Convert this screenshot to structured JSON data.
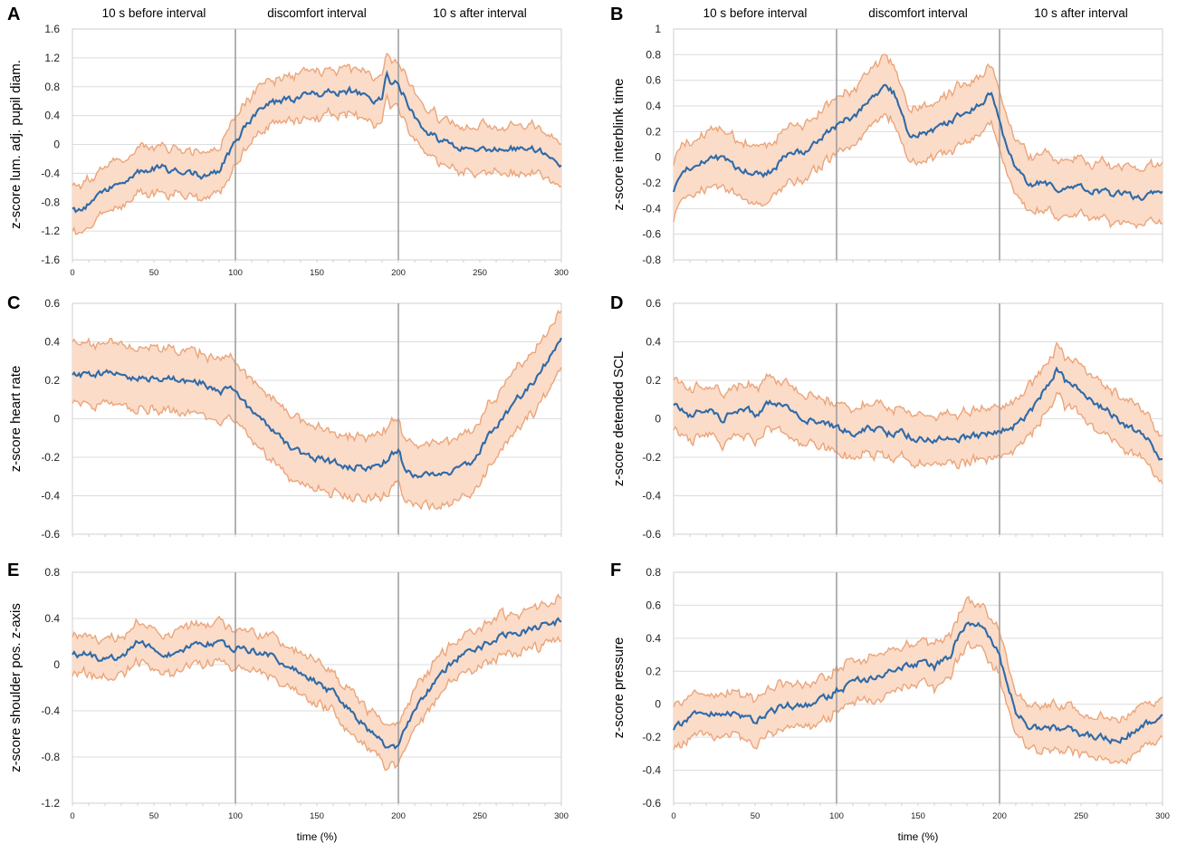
{
  "figure": {
    "x_label": "time (%)",
    "segments": [
      "10 s before interval",
      "discomfort interval",
      "10 s after interval"
    ],
    "colors": {
      "mean": "#2e6aa8",
      "band_fill": "#fbdcc8",
      "band_edge": "#eba57b"
    }
  },
  "chart_data": [
    {
      "id": "A",
      "type": "line",
      "ylabel": "z-score lum. adj. pupil diam.",
      "xlim": [
        0,
        300
      ],
      "x_ticks": [
        0,
        50,
        100,
        150,
        200,
        250,
        300
      ],
      "ylim": [
        -1.6,
        1.6
      ],
      "y_ticks": [
        -1.6,
        -1.2,
        -0.8,
        -0.4,
        0,
        0.4,
        0.8,
        1.2,
        1.6
      ],
      "y_tick_labels": [
        "-1.6",
        "-1.2",
        "-0.8",
        "-0.4",
        "0",
        "0.4",
        "0.8",
        "1.2",
        "1.6"
      ],
      "separators": [
        100,
        200
      ],
      "mean": {
        "x": [
          0,
          5,
          15,
          25,
          35,
          45,
          55,
          60,
          70,
          80,
          90,
          95,
          100,
          110,
          120,
          130,
          140,
          150,
          160,
          170,
          180,
          190,
          193,
          195,
          200,
          205,
          210,
          215,
          225,
          235,
          250,
          270,
          290,
          300
        ],
        "y": [
          -0.85,
          -0.95,
          -0.72,
          -0.55,
          -0.45,
          -0.38,
          -0.28,
          -0.36,
          -0.38,
          -0.42,
          -0.35,
          -0.15,
          0.05,
          0.35,
          0.55,
          0.6,
          0.65,
          0.7,
          0.72,
          0.75,
          0.65,
          0.6,
          0.98,
          0.9,
          0.85,
          0.6,
          0.4,
          0.25,
          0.05,
          -0.02,
          -0.08,
          -0.05,
          -0.1,
          -0.25
        ]
      },
      "band_halfwidth": 0.32
    },
    {
      "id": "B",
      "type": "line",
      "ylabel": "z-score interblink time",
      "xlim": [
        0,
        300
      ],
      "x_ticks": [
        0,
        50,
        100,
        150,
        200,
        250,
        300
      ],
      "ylim": [
        -0.8,
        1.0
      ],
      "y_ticks": [
        -0.8,
        -0.6,
        -0.4,
        -0.2,
        0,
        0.2,
        0.4,
        0.6,
        0.8,
        1.0
      ],
      "y_tick_labels": [
        "-0.8",
        "-0.6",
        "-0.4",
        "-0.2",
        "0",
        "0.2",
        "0.4",
        "0.6",
        "0.8",
        "1"
      ],
      "separators": [
        100,
        200
      ],
      "mean": {
        "x": [
          0,
          5,
          15,
          25,
          35,
          45,
          55,
          60,
          70,
          80,
          90,
          100,
          110,
          120,
          130,
          135,
          140,
          145,
          160,
          170,
          180,
          190,
          195,
          200,
          205,
          210,
          220,
          230,
          240,
          250,
          265,
          280,
          300
        ],
        "y": [
          -0.25,
          -0.12,
          -0.05,
          0.0,
          -0.05,
          -0.1,
          -0.12,
          -0.1,
          0.02,
          0.05,
          0.15,
          0.25,
          0.32,
          0.42,
          0.55,
          0.5,
          0.35,
          0.15,
          0.22,
          0.28,
          0.35,
          0.45,
          0.5,
          0.3,
          0.05,
          -0.1,
          -0.22,
          -0.2,
          -0.25,
          -0.25,
          -0.28,
          -0.3,
          -0.3
        ]
      },
      "band_halfwidth": 0.22
    },
    {
      "id": "C",
      "type": "line",
      "ylabel": "z-score heart rate",
      "xlim": [
        0,
        300
      ],
      "x_ticks": [
        0,
        50,
        100,
        150,
        200,
        250,
        300
      ],
      "ylim": [
        -0.6,
        0.6
      ],
      "y_ticks": [
        -0.6,
        -0.4,
        -0.2,
        0,
        0.2,
        0.4,
        0.6
      ],
      "y_tick_labels": [
        "-0.6",
        "-0.4",
        "-0.2",
        "0",
        "0.2",
        "0.4",
        "0.6"
      ],
      "separators": [
        100,
        200
      ],
      "mean": {
        "x": [
          0,
          10,
          20,
          35,
          50,
          65,
          80,
          90,
          100,
          105,
          115,
          125,
          135,
          145,
          155,
          165,
          175,
          185,
          195,
          200,
          205,
          215,
          225,
          235,
          245,
          255,
          265,
          275,
          285,
          295,
          300
        ],
        "y": [
          0.24,
          0.22,
          0.24,
          0.22,
          0.21,
          0.2,
          0.19,
          0.14,
          0.15,
          0.08,
          0.0,
          -0.08,
          -0.15,
          -0.2,
          -0.22,
          -0.24,
          -0.25,
          -0.26,
          -0.2,
          -0.15,
          -0.29,
          -0.3,
          -0.28,
          -0.27,
          -0.22,
          -0.1,
          0.02,
          0.12,
          0.22,
          0.35,
          0.43
        ]
      },
      "band_halfwidth": 0.16
    },
    {
      "id": "D",
      "type": "line",
      "ylabel": "z-score detended SCL",
      "xlim": [
        0,
        300
      ],
      "x_ticks": [
        0,
        50,
        100,
        150,
        200,
        250,
        300
      ],
      "ylim": [
        -0.6,
        0.6
      ],
      "y_ticks": [
        -0.6,
        -0.4,
        -0.2,
        0,
        0.2,
        0.4,
        0.6
      ],
      "y_tick_labels": [
        "-0.6",
        "-0.4",
        "-0.2",
        "0",
        "0.2",
        "0.4",
        "0.6"
      ],
      "separators": [
        100,
        200
      ],
      "mean": {
        "x": [
          0,
          10,
          20,
          30,
          40,
          50,
          60,
          70,
          80,
          90,
          100,
          110,
          120,
          130,
          140,
          150,
          160,
          170,
          180,
          190,
          200,
          210,
          220,
          230,
          235,
          240,
          250,
          260,
          270,
          280,
          290,
          300
        ],
        "y": [
          0.08,
          0.02,
          0.05,
          0.0,
          0.05,
          0.03,
          0.08,
          0.05,
          0.0,
          -0.03,
          -0.05,
          -0.07,
          -0.05,
          -0.08,
          -0.07,
          -0.1,
          -0.12,
          -0.09,
          -0.1,
          -0.08,
          -0.07,
          -0.03,
          0.05,
          0.18,
          0.26,
          0.2,
          0.15,
          0.08,
          0.02,
          -0.05,
          -0.1,
          -0.22
        ]
      },
      "band_halfwidth": 0.13
    },
    {
      "id": "E",
      "type": "line",
      "ylabel": "z-score shoulder pos. z-axis",
      "xlim": [
        0,
        300
      ],
      "x_ticks": [
        0,
        50,
        100,
        150,
        200,
        250,
        300
      ],
      "ylim": [
        -1.2,
        0.8
      ],
      "y_ticks": [
        -1.2,
        -0.8,
        -0.4,
        0,
        0.4,
        0.8
      ],
      "y_tick_labels": [
        "-1.2",
        "-0.8",
        "-0.4",
        "0",
        "0.4",
        "0.8"
      ],
      "separators": [
        100,
        200
      ],
      "mean": {
        "x": [
          0,
          10,
          20,
          30,
          40,
          50,
          60,
          70,
          80,
          90,
          100,
          110,
          120,
          130,
          140,
          150,
          160,
          170,
          180,
          190,
          195,
          200,
          205,
          210,
          220,
          230,
          240,
          250,
          260,
          270,
          280,
          290,
          300
        ],
        "y": [
          0.1,
          0.08,
          0.05,
          0.05,
          0.2,
          0.12,
          0.1,
          0.15,
          0.2,
          0.18,
          0.15,
          0.12,
          0.08,
          0.02,
          -0.05,
          -0.15,
          -0.25,
          -0.38,
          -0.55,
          -0.68,
          -0.72,
          -0.7,
          -0.55,
          -0.4,
          -0.2,
          -0.02,
          0.1,
          0.15,
          0.22,
          0.28,
          0.3,
          0.35,
          0.38
        ]
      },
      "band_halfwidth": 0.17
    },
    {
      "id": "F",
      "type": "line",
      "ylabel": "z-score pressure",
      "xlim": [
        0,
        300
      ],
      "x_ticks": [
        0,
        50,
        100,
        150,
        200,
        250,
        300
      ],
      "ylim": [
        -0.6,
        0.8
      ],
      "y_ticks": [
        -0.6,
        -0.4,
        -0.2,
        0,
        0.2,
        0.4,
        0.6,
        0.8
      ],
      "y_tick_labels": [
        "-0.6",
        "-0.4",
        "-0.2",
        "0",
        "0.2",
        "0.4",
        "0.6",
        "0.8"
      ],
      "separators": [
        100,
        200
      ],
      "mean": {
        "x": [
          0,
          10,
          20,
          30,
          40,
          50,
          60,
          70,
          80,
          90,
          100,
          110,
          120,
          130,
          140,
          150,
          160,
          170,
          175,
          180,
          185,
          190,
          195,
          200,
          205,
          210,
          220,
          230,
          240,
          250,
          260,
          270,
          280,
          290,
          300
        ],
        "y": [
          -0.15,
          -0.08,
          -0.05,
          -0.05,
          -0.08,
          -0.1,
          -0.05,
          0.0,
          -0.02,
          0.02,
          0.08,
          0.13,
          0.15,
          0.2,
          0.22,
          0.25,
          0.22,
          0.3,
          0.42,
          0.5,
          0.45,
          0.48,
          0.4,
          0.3,
          0.1,
          -0.05,
          -0.15,
          -0.15,
          -0.15,
          -0.18,
          -0.2,
          -0.22,
          -0.18,
          -0.12,
          -0.08
        ]
      },
      "band_halfwidth": 0.13
    }
  ]
}
